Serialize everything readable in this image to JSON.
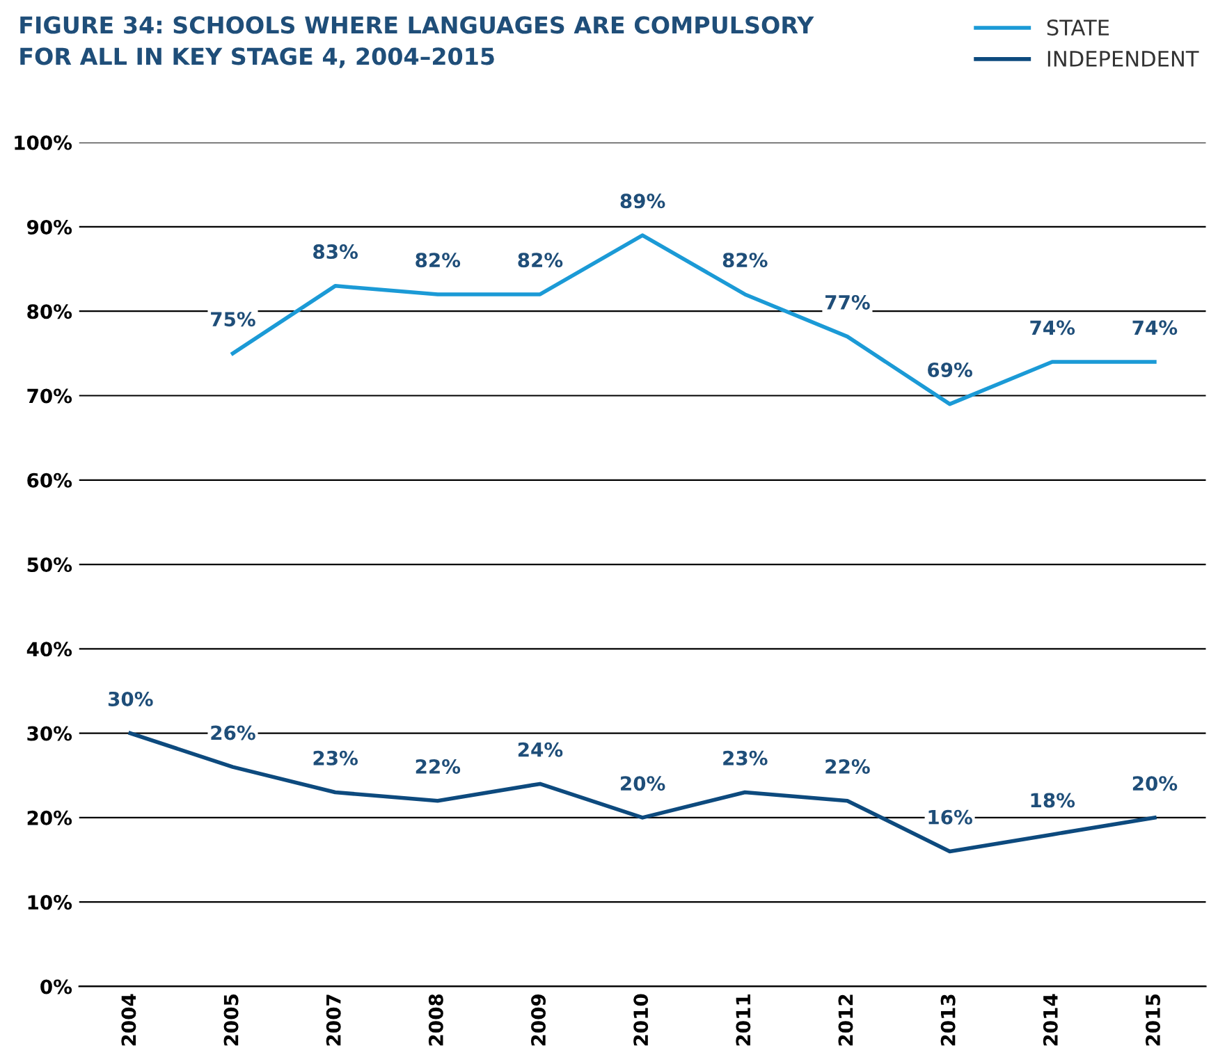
{
  "chart_data": {
    "type": "line",
    "title": "FIGURE 34: SCHOOLS WHERE LANGUAGES ARE COMPULSORY\nFOR ALL IN KEY STAGE 4, 2004–2015",
    "categories": [
      "2004",
      "2005",
      "2007",
      "2008",
      "2009",
      "2010",
      "2011",
      "2012",
      "2013",
      "2014",
      "2015"
    ],
    "series": [
      {
        "name": "STATE",
        "color": "#1b9ad6",
        "values": [
          null,
          75,
          83,
          82,
          82,
          89,
          82,
          77,
          69,
          74,
          74
        ],
        "value_labels": [
          null,
          "75%",
          "83%",
          "82%",
          "82%",
          "89%",
          "82%",
          "77%",
          "69%",
          "74%",
          "74%"
        ]
      },
      {
        "name": "INDEPENDENT",
        "color": "#0d4a7e",
        "values": [
          30,
          26,
          23,
          22,
          24,
          20,
          23,
          22,
          16,
          18,
          20
        ],
        "value_labels": [
          "30%",
          "26%",
          "23%",
          "22%",
          "24%",
          "20%",
          "23%",
          "22%",
          "16%",
          "18%",
          "20%"
        ]
      }
    ],
    "ylim": [
      0,
      100
    ],
    "yticks": [
      {
        "value": 0,
        "label": "0%"
      },
      {
        "value": 10,
        "label": "10%"
      },
      {
        "value": 20,
        "label": "20%"
      },
      {
        "value": 30,
        "label": "30%"
      },
      {
        "value": 40,
        "label": "40%"
      },
      {
        "value": 50,
        "label": "50%"
      },
      {
        "value": 60,
        "label": "60%"
      },
      {
        "value": 70,
        "label": "70%"
      },
      {
        "value": 80,
        "label": "80%"
      },
      {
        "value": 90,
        "label": "90%"
      },
      {
        "value": 100,
        "label": "100%"
      }
    ],
    "grid": "y",
    "legend": "top right",
    "marker": "none",
    "line_style": "solid"
  }
}
